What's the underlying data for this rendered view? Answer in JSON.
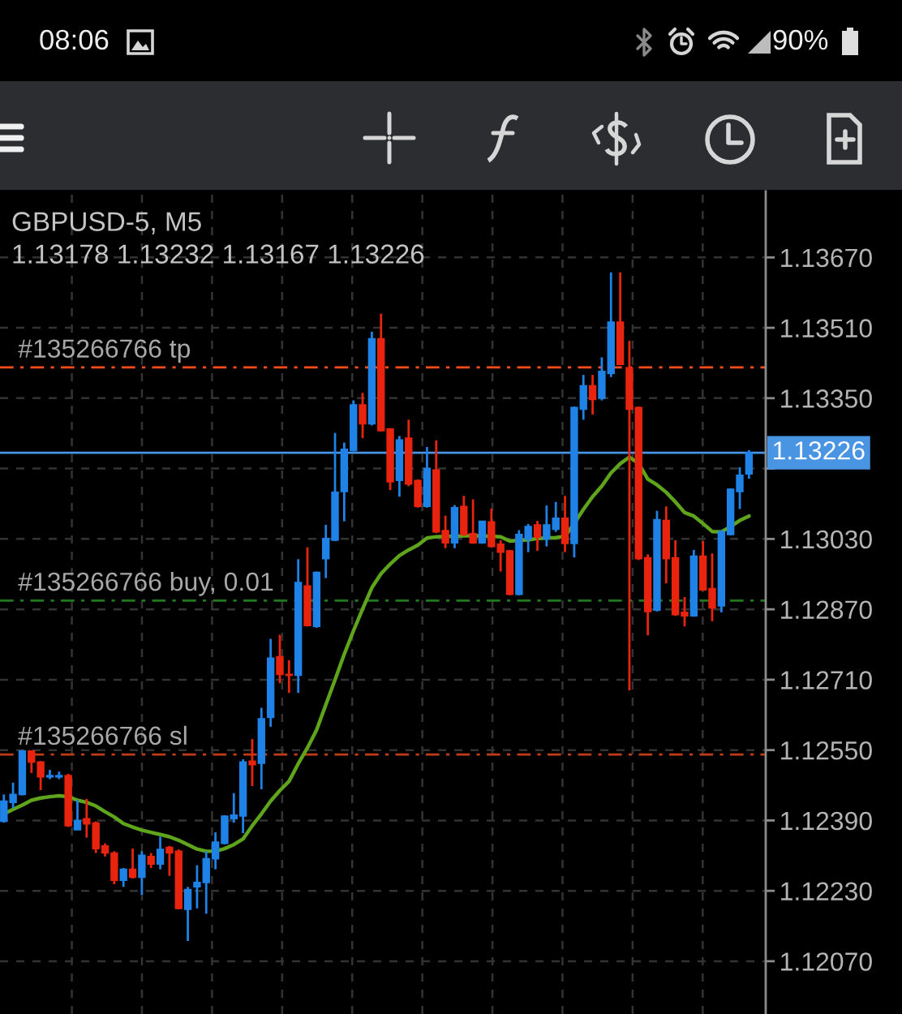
{
  "chart_data": {
    "type": "candlestick",
    "title": "GBPUSD-5, M5",
    "subtitle": "1.13178 1.13232 1.13167 1.13226",
    "categories": [
      null,
      null,
      null,
      null,
      null,
      null,
      null,
      null,
      null,
      null,
      null,
      null,
      null,
      null,
      null,
      null,
      null,
      null,
      null,
      null,
      null,
      null,
      null,
      null,
      null,
      null,
      null,
      null,
      null,
      null,
      null,
      null,
      null,
      null,
      null,
      null,
      null,
      null,
      null,
      null,
      null,
      null,
      null,
      null,
      null,
      null,
      null,
      null,
      null,
      null,
      null,
      null,
      null,
      null,
      null,
      null,
      null,
      null,
      null,
      null,
      null,
      null,
      null,
      null,
      null,
      null,
      null,
      null,
      null,
      null,
      null,
      null,
      null,
      null,
      null,
      null,
      null,
      null,
      null,
      null,
      null,
      null
    ],
    "ohlc": [
      [
        1.12388,
        1.12449,
        1.12385,
        1.12434
      ],
      [
        1.12431,
        1.12476,
        1.12418,
        1.12449
      ],
      [
        1.12449,
        1.1255,
        1.12447,
        1.12548
      ],
      [
        1.12548,
        1.12548,
        1.12498,
        1.12523
      ],
      [
        1.12523,
        1.12525,
        1.12459,
        1.12489
      ],
      [
        1.12489,
        1.12505,
        1.12484,
        1.12492
      ],
      [
        1.12489,
        1.12501,
        1.12484,
        1.12492
      ],
      [
        1.12492,
        1.12496,
        1.12375,
        1.12378
      ],
      [
        1.12369,
        1.12437,
        1.12369,
        1.1239
      ],
      [
        1.12394,
        1.12439,
        1.12351,
        1.12382
      ],
      [
        1.12384,
        1.12388,
        1.12316,
        1.12326
      ],
      [
        1.12332,
        1.12338,
        1.12308,
        1.12316
      ],
      [
        1.12316,
        1.1232,
        1.12245,
        1.12254
      ],
      [
        1.12254,
        1.12282,
        1.12239,
        1.12279
      ],
      [
        1.12279,
        1.12326,
        1.12258,
        1.12261
      ],
      [
        1.12261,
        1.1232,
        1.12221,
        1.12311
      ],
      [
        1.12308,
        1.12316,
        1.12282,
        1.12291
      ],
      [
        1.12291,
        1.12353,
        1.12279,
        1.12324
      ],
      [
        1.12329,
        1.12332,
        1.12264,
        1.12316
      ],
      [
        1.1232,
        1.12324,
        1.12188,
        1.1219
      ],
      [
        1.12188,
        1.12239,
        1.12116,
        1.12233
      ],
      [
        1.12239,
        1.12288,
        1.1219,
        1.12249
      ],
      [
        1.12249,
        1.1232,
        1.12178,
        1.12303
      ],
      [
        1.12303,
        1.12363,
        1.12279,
        1.12341
      ],
      [
        1.12338,
        1.12402,
        1.12336,
        1.124
      ],
      [
        1.12394,
        1.12452,
        1.12385,
        1.12402
      ],
      [
        1.124,
        1.12529,
        1.12361,
        1.12523
      ],
      [
        1.12525,
        1.12575,
        1.12468,
        1.12517
      ],
      [
        1.1252,
        1.12646,
        1.12461,
        1.12621
      ],
      [
        1.12624,
        1.12803,
        1.12603,
        1.12759
      ],
      [
        1.12762,
        1.12812,
        1.12702,
        1.12722
      ],
      [
        1.12722,
        1.12754,
        1.1268,
        1.1272
      ],
      [
        1.1272,
        1.12984,
        1.1268,
        1.12931
      ],
      [
        1.12923,
        1.13011,
        1.12831,
        1.12833
      ],
      [
        1.12831,
        1.12956,
        1.12828,
        1.12954
      ],
      [
        1.12985,
        1.13062,
        1.12941,
        1.13031
      ],
      [
        1.13027,
        1.13271,
        1.13025,
        1.13136
      ],
      [
        1.13138,
        1.13249,
        1.1307,
        1.13234
      ],
      [
        1.13231,
        1.13345,
        1.13229,
        1.13335
      ],
      [
        1.13335,
        1.13362,
        1.13259,
        1.13292
      ],
      [
        1.13292,
        1.13501,
        1.13288,
        1.13485
      ],
      [
        1.13485,
        1.13542,
        1.13274,
        1.13276
      ],
      [
        1.1328,
        1.13282,
        1.13141,
        1.1316
      ],
      [
        1.13163,
        1.13264,
        1.13126,
        1.13255
      ],
      [
        1.13259,
        1.13301,
        1.1315,
        1.13155
      ],
      [
        1.13163,
        1.13165,
        1.13101,
        1.13104
      ],
      [
        1.13104,
        1.13239,
        1.13101,
        1.1319
      ],
      [
        1.13187,
        1.13254,
        1.13043,
        1.13046
      ],
      [
        1.13049,
        1.13083,
        1.13009,
        1.13021
      ],
      [
        1.13021,
        1.13107,
        1.13009,
        1.13101
      ],
      [
        1.13104,
        1.13128,
        1.13037,
        1.1304
      ],
      [
        1.13042,
        1.1312,
        1.13019,
        1.13021
      ],
      [
        1.13021,
        1.1307,
        1.13019,
        1.1307
      ],
      [
        1.13069,
        1.13099,
        1.1301,
        1.13013
      ],
      [
        1.13018,
        1.13027,
        1.12956,
        1.13
      ],
      [
        1.13003,
        1.13005,
        1.12902,
        1.12904
      ],
      [
        1.12904,
        1.1305,
        1.12902,
        1.1304
      ],
      [
        1.1303,
        1.13064,
        1.13,
        1.13058
      ],
      [
        1.13062,
        1.13071,
        1.13003,
        1.13034
      ],
      [
        1.1303,
        1.13106,
        1.13013,
        1.13062
      ],
      [
        1.13052,
        1.13114,
        1.13046,
        1.13077
      ],
      [
        1.13077,
        1.13128,
        1.13,
        1.1302
      ],
      [
        1.1302,
        1.13331,
        1.12988,
        1.13329
      ],
      [
        1.13325,
        1.13403,
        1.13301,
        1.13378
      ],
      [
        1.13378,
        1.13403,
        1.13313,
        1.13347
      ],
      [
        1.1335,
        1.13443,
        1.13345,
        1.13411
      ],
      [
        1.13406,
        1.13636,
        1.13398,
        1.13523
      ],
      [
        1.13523,
        1.13636,
        1.13425,
        1.13427
      ],
      [
        1.13419,
        1.1348,
        1.12686,
        1.13325
      ],
      [
        1.13329,
        1.13331,
        1.12982,
        1.12985
      ],
      [
        1.12987,
        1.12995,
        1.12811,
        1.12865
      ],
      [
        1.12868,
        1.13094,
        1.12865,
        1.13074
      ],
      [
        1.13072,
        1.13104,
        1.12929,
        1.12985
      ],
      [
        1.12987,
        1.13027,
        1.12855,
        1.12858
      ],
      [
        1.12863,
        1.12898,
        1.12831,
        1.12855
      ],
      [
        1.12855,
        1.13005,
        1.12853,
        1.12991
      ],
      [
        1.12991,
        1.13025,
        1.12912,
        1.12914
      ],
      [
        1.12917,
        1.12997,
        1.12843,
        1.12873
      ],
      [
        1.12878,
        1.1305,
        1.12863,
        1.13046
      ],
      [
        1.1304,
        1.13145,
        1.13038,
        1.13143
      ],
      [
        1.13138,
        1.13193,
        1.13098,
        1.13175
      ],
      [
        1.13178,
        1.13232,
        1.13167,
        1.13226
      ]
    ],
    "colors": [
      "#1e82e6",
      "#1e82e6",
      "#1e82e6",
      "#e8240f",
      "#e8240f",
      "#1e82e6",
      "#1e82e6",
      "#e8240f",
      "#1e82e6",
      "#e8240f",
      "#e8240f",
      "#e8240f",
      "#e8240f",
      "#1e82e6",
      "#e8240f",
      "#1e82e6",
      "#e8240f",
      "#1e82e6",
      "#e8240f",
      "#e8240f",
      "#1e82e6",
      "#1e82e6",
      "#1e82e6",
      "#1e82e6",
      "#1e82e6",
      "#1e82e6",
      "#1e82e6",
      "#e8240f",
      "#1e82e6",
      "#1e82e6",
      "#e8240f",
      "#e8240f",
      "#1e82e6",
      "#e8240f",
      "#1e82e6",
      "#1e82e6",
      "#1e82e6",
      "#1e82e6",
      "#1e82e6",
      "#e8240f",
      "#1e82e6",
      "#e8240f",
      "#e8240f",
      "#1e82e6",
      "#e8240f",
      "#e8240f",
      "#1e82e6",
      "#e8240f",
      "#e8240f",
      "#1e82e6",
      "#e8240f",
      "#e8240f",
      "#1e82e6",
      "#e8240f",
      "#e8240f",
      "#e8240f",
      "#1e82e6",
      "#1e82e6",
      "#e8240f",
      "#1e82e6",
      "#1e82e6",
      "#e8240f",
      "#1e82e6",
      "#1e82e6",
      "#e8240f",
      "#1e82e6",
      "#1e82e6",
      "#e8240f",
      "#e8240f",
      "#e8240f",
      "#e8240f",
      "#1e82e6",
      "#e8240f",
      "#e8240f",
      "#e8240f",
      "#1e82e6",
      "#e8240f",
      "#e8240f",
      "#1e82e6",
      "#1e82e6",
      "#1e82e6",
      "#1e82e6"
    ],
    "series": [
      {
        "type": "line",
        "color": "#5ea51c",
        "line_style": "solid",
        "values": [
          1.12405,
          1.12415,
          1.12425,
          1.12436,
          1.12441,
          1.12444,
          1.12446,
          1.12444,
          1.12436,
          1.12431,
          1.12423,
          1.1241,
          1.12398,
          1.12383,
          1.12375,
          1.12368,
          1.12363,
          1.12358,
          1.12353,
          1.12345,
          1.12335,
          1.12325,
          1.1232,
          1.1232,
          1.12326,
          1.12335,
          1.12348,
          1.12378,
          1.12405,
          1.12434,
          1.12458,
          1.12479,
          1.12519,
          1.12555,
          1.12596,
          1.12653,
          1.1271,
          1.12768,
          1.12821,
          1.12871,
          1.12919,
          1.12951,
          1.12973,
          1.12992,
          1.13005,
          1.13016,
          1.13032,
          1.13035,
          1.13036,
          1.13036,
          1.13037,
          1.13037,
          1.13037,
          1.13036,
          1.13035,
          1.13025,
          1.13027,
          1.13028,
          1.13031,
          1.13032,
          1.13033,
          1.13036,
          1.13065,
          1.13097,
          1.13126,
          1.1315,
          1.1318,
          1.13201,
          1.13216,
          1.13202,
          1.13166,
          1.13153,
          1.13136,
          1.13114,
          1.1309,
          1.13082,
          1.13065,
          1.13047,
          1.13046,
          1.13058,
          1.13072,
          1.13082
        ]
      }
    ],
    "ylim": [
      1.1195,
      1.1382
    ],
    "yticks": [
      {
        "value": 1.1207,
        "label": "1.12070"
      },
      {
        "value": 1.1223,
        "label": "1.12230"
      },
      {
        "value": 1.1239,
        "label": "1.12390"
      },
      {
        "value": 1.1255,
        "label": "1.12550"
      },
      {
        "value": 1.1271,
        "label": "1.12710"
      },
      {
        "value": 1.1287,
        "label": "1.12870"
      },
      {
        "value": 1.1303,
        "label": "1.13030"
      },
      {
        "value": 1.1319,
        "label": null
      },
      {
        "value": 1.1335,
        "label": "1.13350"
      },
      {
        "value": 1.1351,
        "label": "1.13510"
      },
      {
        "value": 1.1367,
        "label": "1.13670"
      }
    ],
    "ref_lines": [
      {
        "axis": "y",
        "value": 1.1342,
        "label": "#135266766 tp",
        "color": "#ff4d1a",
        "line_style": "dashdot"
      },
      {
        "axis": "y",
        "value": 1.1289,
        "label": "#135266766 buy, 0.01",
        "color": "#1f7a1f",
        "line_style": "dashdot"
      },
      {
        "axis": "y",
        "value": 1.1254,
        "label": "#135266766 sl",
        "color": "#c23c16",
        "line_style": "dashdot"
      },
      {
        "axis": "y",
        "value": 1.13226,
        "label": "1.13226",
        "color": "#4a94e4",
        "line_style": "solid"
      }
    ],
    "annotations": [
      "08:06",
      "90%"
    ],
    "grid": true,
    "tick_labels": "y"
  }
}
